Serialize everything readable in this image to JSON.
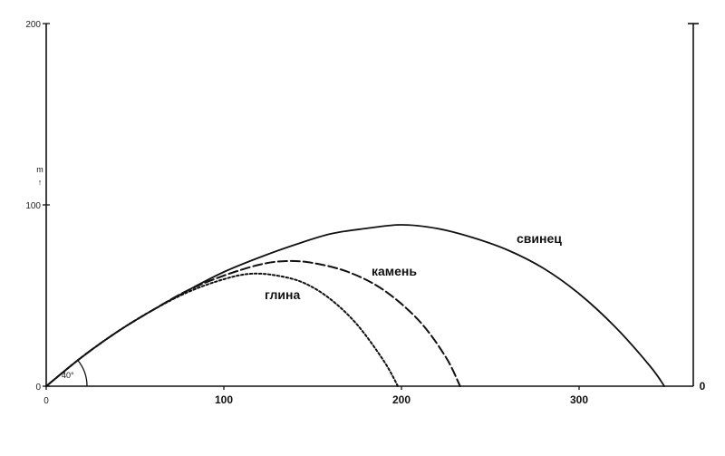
{
  "chart_data": {
    "type": "line",
    "xlim": [
      0,
      350
    ],
    "ylim": [
      0,
      200
    ],
    "grid": false,
    "ylabel": "m",
    "ylabel_arrow": "↑",
    "angle_label": "40°",
    "x_ticks": [
      {
        "value": 0,
        "label": "0"
      },
      {
        "value": 100,
        "label": "100"
      },
      {
        "value": 200,
        "label": "200"
      },
      {
        "value": 300,
        "label": "300"
      }
    ],
    "y_ticks": [
      {
        "value": 0,
        "label": "0"
      },
      {
        "value": 100,
        "label": "100"
      },
      {
        "value": 200,
        "label": "200"
      }
    ],
    "right_axis_label": "0",
    "series": [
      {
        "name": "свинец",
        "style": "solid",
        "x": [
          0,
          20,
          40,
          60,
          80,
          100,
          120,
          140,
          160,
          180,
          200,
          220,
          240,
          260,
          280,
          300,
          320,
          340,
          348
        ],
        "y": [
          0,
          16,
          30,
          42,
          53,
          63,
          71,
          78,
          84,
          87,
          89,
          87,
          82,
          75,
          65,
          51,
          33,
          11,
          0
        ]
      },
      {
        "name": "камень",
        "style": "dashed",
        "x": [
          0,
          20,
          40,
          60,
          80,
          100,
          120,
          135,
          150,
          170,
          190,
          210,
          225,
          233
        ],
        "y": [
          0,
          16,
          30,
          42,
          53,
          61,
          67,
          69,
          68,
          63,
          53,
          36,
          16,
          0
        ]
      },
      {
        "name": "глина",
        "style": "dotted",
        "x": [
          0,
          20,
          40,
          60,
          80,
          100,
          115,
          130,
          145,
          160,
          175,
          190,
          198
        ],
        "y": [
          0,
          16,
          30,
          42,
          52,
          59,
          62,
          61,
          57,
          48,
          34,
          14,
          0
        ]
      }
    ]
  }
}
